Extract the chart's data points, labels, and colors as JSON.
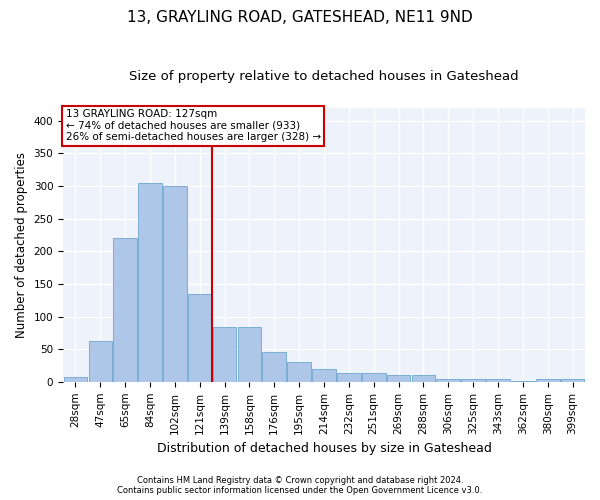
{
  "title": "13, GRAYLING ROAD, GATESHEAD, NE11 9ND",
  "subtitle": "Size of property relative to detached houses in Gateshead",
  "xlabel": "Distribution of detached houses by size in Gateshead",
  "ylabel": "Number of detached properties",
  "footer_line1": "Contains HM Land Registry data © Crown copyright and database right 2024.",
  "footer_line2": "Contains public sector information licensed under the Open Government Licence v3.0.",
  "bin_labels": [
    "28sqm",
    "47sqm",
    "65sqm",
    "84sqm",
    "102sqm",
    "121sqm",
    "139sqm",
    "158sqm",
    "176sqm",
    "195sqm",
    "214sqm",
    "232sqm",
    "251sqm",
    "269sqm",
    "288sqm",
    "306sqm",
    "325sqm",
    "343sqm",
    "362sqm",
    "380sqm",
    "399sqm"
  ],
  "bar_values": [
    8,
    63,
    220,
    305,
    300,
    135,
    84,
    84,
    46,
    31,
    19,
    14,
    13,
    11,
    10,
    4,
    5,
    4,
    2,
    4,
    4
  ],
  "bar_color": "#aec6e8",
  "bar_edge_color": "#7aaed4",
  "vline_color": "#cc0000",
  "annotation_box_text": "13 GRAYLING ROAD: 127sqm\n← 74% of detached houses are smaller (933)\n26% of semi-detached houses are larger (328) →",
  "annotation_box_color": "#cc0000",
  "ylim": [
    0,
    420
  ],
  "yticks": [
    0,
    50,
    100,
    150,
    200,
    250,
    300,
    350,
    400
  ],
  "bg_color": "#eef2fa",
  "grid_color": "#ffffff",
  "title_fontsize": 11,
  "subtitle_fontsize": 9.5,
  "tick_fontsize": 7.5,
  "ylabel_fontsize": 8.5,
  "xlabel_fontsize": 9
}
